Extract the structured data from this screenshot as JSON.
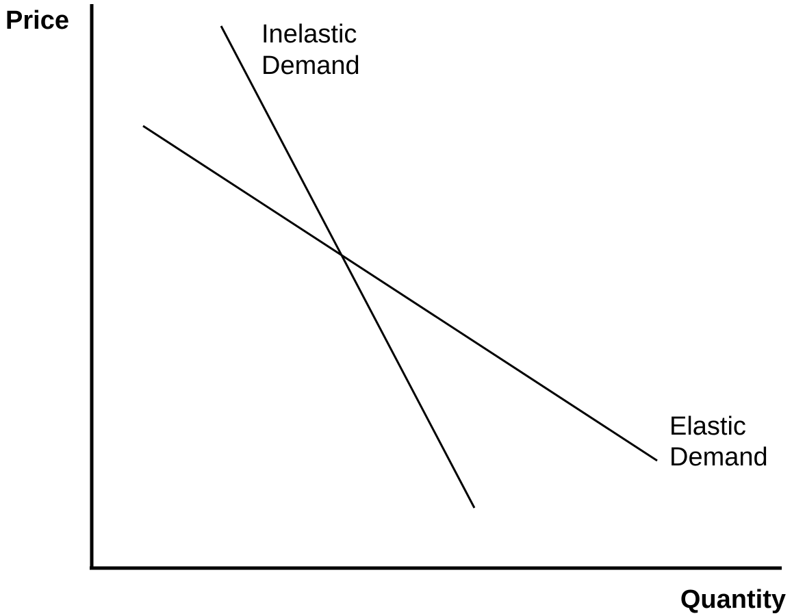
{
  "axes": {
    "y_label": "Price",
    "x_label": "Quantity"
  },
  "curves": {
    "inelastic": {
      "label_line1": "Inelastic",
      "label_line2": "Demand"
    },
    "elastic": {
      "label_line1": "Elastic",
      "label_line2": "Demand"
    }
  },
  "colors": {
    "line": "#000000",
    "background": "#ffffff"
  }
}
